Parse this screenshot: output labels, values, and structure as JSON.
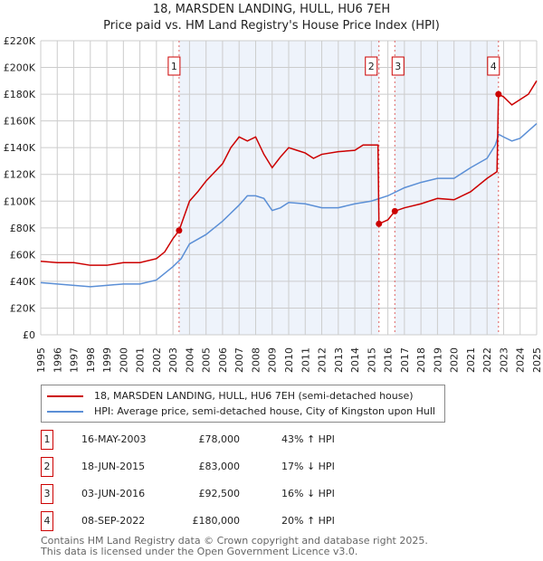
{
  "chart_data": {
    "type": "line",
    "title": "18, MARSDEN LANDING, HULL, HU6 7EH",
    "subtitle": "Price paid vs. HM Land Registry's House Price Index (HPI)",
    "xlim": [
      1995,
      2025
    ],
    "ylim": [
      0,
      220000
    ],
    "yticks": [
      0,
      20000,
      40000,
      60000,
      80000,
      100000,
      120000,
      140000,
      160000,
      180000,
      200000,
      220000
    ],
    "ytick_labels": [
      "£0",
      "£20K",
      "£40K",
      "£60K",
      "£80K",
      "£100K",
      "£120K",
      "£140K",
      "£160K",
      "£180K",
      "£200K",
      "£220K"
    ],
    "xticks": [
      "1995",
      "1996",
      "1997",
      "1998",
      "1999",
      "2000",
      "2001",
      "2002",
      "2003",
      "2004",
      "2005",
      "2006",
      "2007",
      "2008",
      "2009",
      "2010",
      "2011",
      "2012",
      "2013",
      "2014",
      "2015",
      "2016",
      "2017",
      "2018",
      "2019",
      "2020",
      "2021",
      "2022",
      "2023",
      "2024",
      "2025"
    ],
    "grid": true,
    "series": [
      {
        "name": "18, MARSDEN LANDING, HULL, HU6 7EH (semi-detached house)",
        "color": "#cc0000",
        "x": [
          1995,
          1996,
          1997,
          1998,
          1999,
          2000,
          2001,
          2002,
          2002.5,
          2003,
          2003.37,
          2004,
          2004.5,
          2005,
          2006,
          2006.5,
          2007,
          2007.5,
          2008,
          2008.5,
          2009,
          2009.5,
          2010,
          2010.5,
          2011,
          2011.5,
          2012,
          2013,
          2014,
          2014.5,
          2015.4,
          2015.46,
          2016,
          2016.42,
          2017,
          2018,
          2019,
          2020,
          2021,
          2022,
          2022.6,
          2022.69,
          2023,
          2023.5,
          2024,
          2024.5,
          2025
        ],
        "y": [
          55000,
          54000,
          54000,
          52000,
          52000,
          54000,
          54000,
          57000,
          62000,
          72000,
          78000,
          100000,
          107000,
          115000,
          128000,
          140000,
          148000,
          145000,
          148000,
          135000,
          125000,
          133000,
          140000,
          138000,
          136000,
          132000,
          135000,
          137000,
          138000,
          142000,
          142000,
          83000,
          86000,
          92500,
          95000,
          98000,
          102000,
          101000,
          107000,
          117000,
          122000,
          180000,
          178000,
          172000,
          176000,
          180000,
          190000
        ]
      },
      {
        "name": "HPI: Average price, semi-detached house, City of Kingston upon Hull",
        "color": "#5b8fd6",
        "x": [
          1995,
          1997,
          1998,
          1999,
          2000,
          2001,
          2002,
          2003,
          2003.5,
          2004,
          2005,
          2006,
          2007,
          2007.5,
          2008,
          2008.5,
          2009,
          2009.5,
          2010,
          2011,
          2012,
          2013,
          2014,
          2015,
          2016,
          2017,
          2018,
          2019,
          2020,
          2021,
          2022,
          2022.5,
          2022.7,
          2023,
          2023.5,
          2024,
          2025
        ],
        "y": [
          39000,
          37000,
          36000,
          37000,
          38000,
          38000,
          41000,
          51000,
          57000,
          68000,
          75000,
          85000,
          97000,
          104000,
          104000,
          102000,
          93000,
          95000,
          99000,
          98000,
          95000,
          95000,
          98000,
          100000,
          104000,
          110000,
          114000,
          117000,
          117000,
          125000,
          132000,
          142000,
          150000,
          148000,
          145000,
          147000,
          158000
        ]
      }
    ],
    "sales": [
      {
        "label": "1",
        "x": 2003.37,
        "y": 78000,
        "date": "16-MAY-2003",
        "price": "£78,000",
        "hpi": "43% ↑ HPI"
      },
      {
        "label": "2",
        "x": 2015.46,
        "y": 83000,
        "date": "18-JUN-2015",
        "price": "£83,000",
        "hpi": "17% ↓ HPI"
      },
      {
        "label": "3",
        "x": 2016.42,
        "y": 92500,
        "date": "03-JUN-2016",
        "price": "£92,500",
        "hpi": "16% ↓ HPI"
      },
      {
        "label": "4",
        "x": 2022.69,
        "y": 180000,
        "date": "08-SEP-2022",
        "price": "£180,000",
        "hpi": "20% ↑ HPI"
      }
    ],
    "shaded_ranges": [
      [
        2003.37,
        2015.46
      ],
      [
        2016.42,
        2022.69
      ]
    ]
  },
  "legend": {
    "red": "18, MARSDEN LANDING, HULL, HU6 7EH (semi-detached house)",
    "blue": "HPI: Average price, semi-detached house, City of Kingston upon Hull"
  },
  "footer": {
    "line1": "Contains HM Land Registry data © Crown copyright and database right 2025.",
    "line2": "This data is licensed under the Open Government Licence v3.0."
  }
}
